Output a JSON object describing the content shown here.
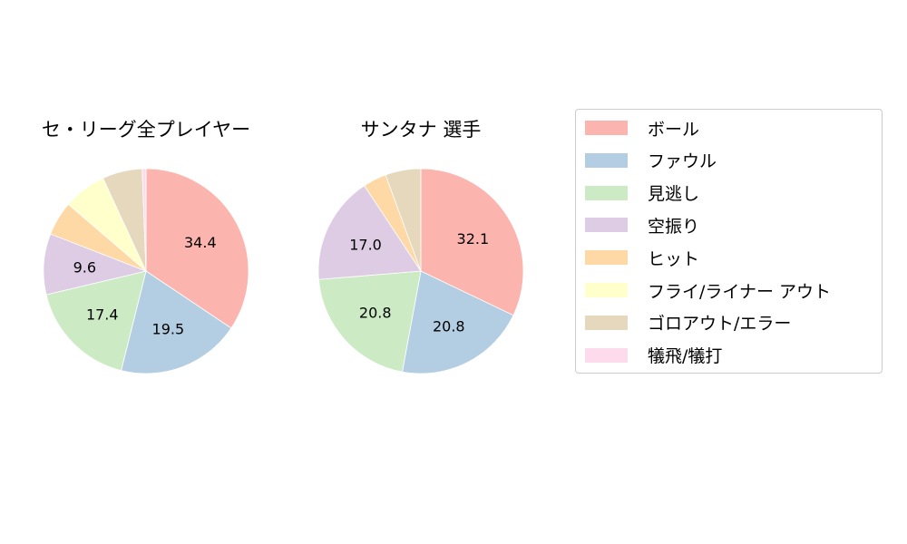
{
  "chart_data": [
    {
      "type": "pie",
      "title": "セ・リーグ全プレイヤー",
      "categories": [
        "ボール",
        "ファウル",
        "見逃し",
        "空振り",
        "ヒット",
        "フライ/ライナー アウト",
        "ゴロアウト/エラー",
        "犠飛/犠打"
      ],
      "values": [
        34.4,
        19.5,
        17.4,
        9.6,
        5.4,
        6.8,
        6.3,
        0.6
      ],
      "labels_shown": [
        "34.4",
        "19.5",
        "17.4",
        "9.6",
        "",
        "",
        "",
        ""
      ],
      "start_angle": 90,
      "direction": "clockwise"
    },
    {
      "type": "pie",
      "title": "サンタナ  選手",
      "categories": [
        "ボール",
        "ファウル",
        "見逃し",
        "空振り",
        "ヒット",
        "フライ/ライナー アウト",
        "ゴロアウト/エラー",
        "犠飛/犠打"
      ],
      "values": [
        32.1,
        20.8,
        20.8,
        17.0,
        3.7,
        0.0,
        5.6,
        0.0
      ],
      "labels_shown": [
        "32.1",
        "20.8",
        "20.8",
        "17.0",
        "",
        "",
        "",
        ""
      ],
      "start_angle": 90,
      "direction": "clockwise"
    }
  ],
  "legend": {
    "items": [
      {
        "label": "ボール",
        "color": "#FBB4AE"
      },
      {
        "label": "ファウル",
        "color": "#B3CDE3"
      },
      {
        "label": "見逃し",
        "color": "#CCEBC5"
      },
      {
        "label": "空振り",
        "color": "#DECBE4"
      },
      {
        "label": "ヒット",
        "color": "#FED9A6"
      },
      {
        "label": "フライ/ライナー アウト",
        "color": "#FFFFCC"
      },
      {
        "label": "ゴロアウト/エラー",
        "color": "#E5D8BD"
      },
      {
        "label": "犠飛/犠打",
        "color": "#FDDAEC"
      }
    ]
  },
  "titles": {
    "left": "セ・リーグ全プレイヤー",
    "right": "サンタナ  選手"
  }
}
